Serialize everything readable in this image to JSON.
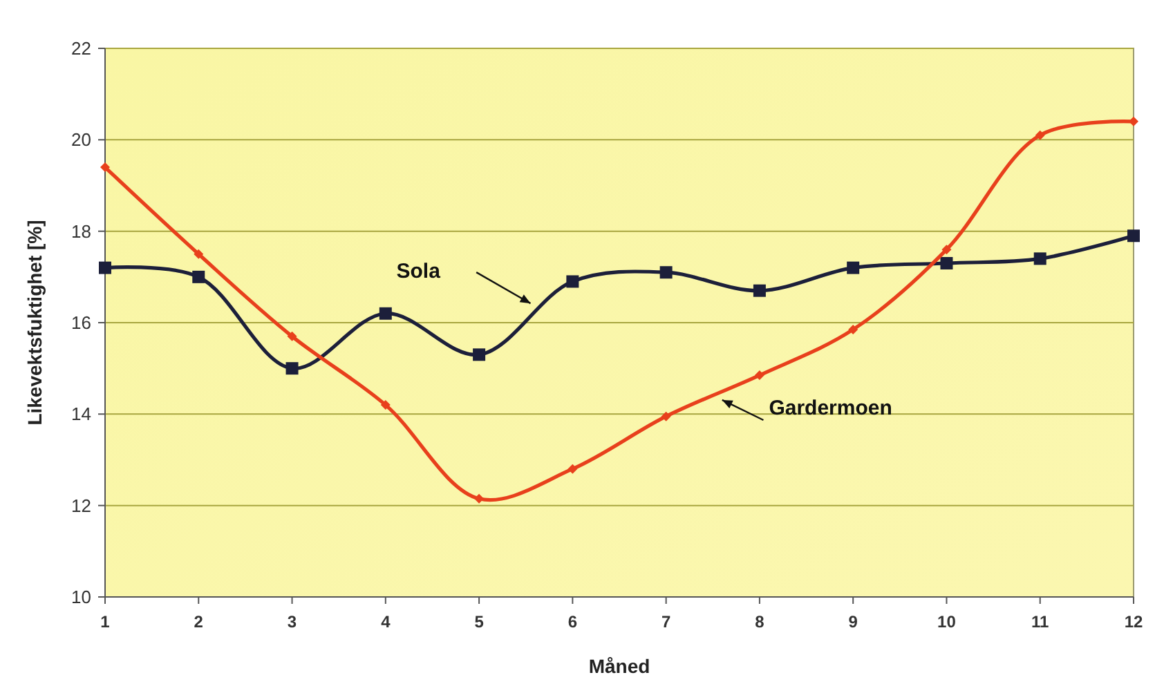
{
  "chart_data": {
    "type": "line",
    "xlabel": "Måned",
    "ylabel": "Likevektsfuktighet [%]",
    "x": [
      1,
      2,
      3,
      4,
      5,
      6,
      7,
      8,
      9,
      10,
      11,
      12
    ],
    "xlim": [
      1,
      12
    ],
    "xticks": [
      1,
      2,
      3,
      4,
      5,
      6,
      7,
      8,
      9,
      10,
      11,
      12
    ],
    "ylim": [
      10,
      22
    ],
    "yticks": [
      10,
      12,
      14,
      16,
      18,
      20,
      22
    ],
    "grid": "y",
    "legend": false,
    "series": [
      {
        "name": "Sola",
        "color": "#1c1f3a",
        "marker": "square",
        "values": [
          17.2,
          17.0,
          15.0,
          16.2,
          15.3,
          16.9,
          17.1,
          16.7,
          17.2,
          17.3,
          17.4,
          17.9
        ]
      },
      {
        "name": "Gardermoen",
        "color": "#e8401c",
        "marker": "diamond",
        "values": [
          19.4,
          17.5,
          15.7,
          14.2,
          12.15,
          12.8,
          13.95,
          14.85,
          15.85,
          17.6,
          20.1,
          20.4
        ]
      }
    ]
  }
}
